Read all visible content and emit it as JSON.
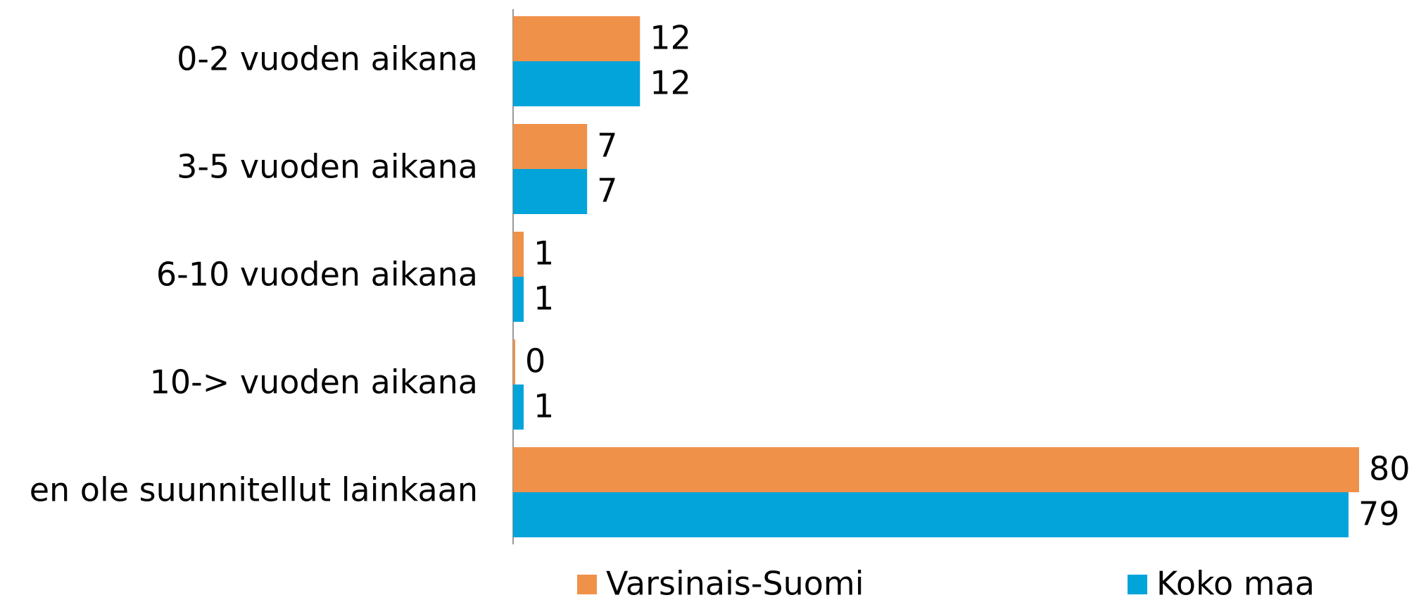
{
  "chart_data": {
    "type": "hbar",
    "categories": [
      "0-2 vuoden aikana",
      "3-5 vuoden aikana",
      "6-10 vuoden aikana",
      "10-> vuoden aikana",
      "en ole suunnitellut lainkaan"
    ],
    "series": [
      {
        "name": "Varsinais-Suomi",
        "color": "#f0914a",
        "values": [
          12,
          7,
          1,
          0,
          80
        ]
      },
      {
        "name": "Koko maa",
        "color": "#02a4da",
        "values": [
          12,
          7,
          1,
          1,
          79
        ]
      }
    ],
    "legend": "bottom"
  }
}
